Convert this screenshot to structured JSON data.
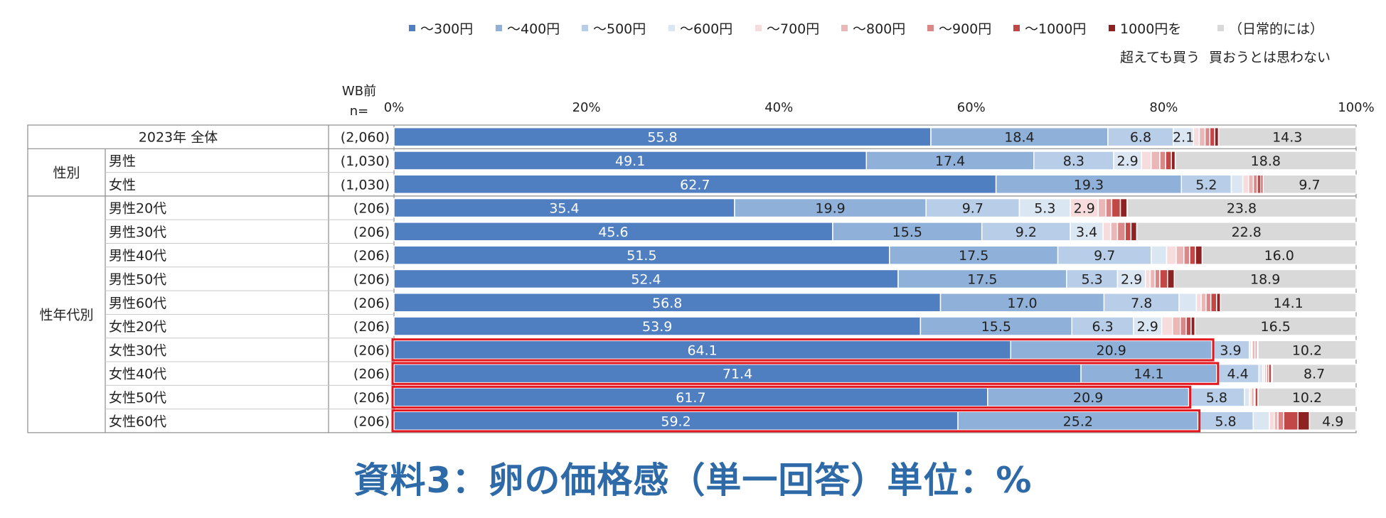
{
  "caption": "資料3：卵の価格感（単一回答）単位：%",
  "chart_data": {
    "type": "bar",
    "orientation": "horizontal",
    "stacked": "percent",
    "header": {
      "wb_label": "WB前",
      "n_label": "n="
    },
    "xlim": [
      0,
      100
    ],
    "x_ticks": [
      "0%",
      "20%",
      "40%",
      "60%",
      "80%",
      "100%"
    ],
    "legend_position": "top",
    "series": [
      {
        "name": "～300円",
        "color": "#4f7fc1",
        "label_color": "#ffffff"
      },
      {
        "name": "～400円",
        "color": "#8fb0d8",
        "label_color": "#222222"
      },
      {
        "name": "～500円",
        "color": "#b8cde8",
        "label_color": "#222222"
      },
      {
        "name": "～600円",
        "color": "#dbe6f3",
        "label_color": "#222222"
      },
      {
        "name": "～700円",
        "color": "#f6dcdc",
        "label_color": "#222222"
      },
      {
        "name": "～800円",
        "color": "#eab6b6",
        "label_color": "#222222"
      },
      {
        "name": "～900円",
        "color": "#d98787",
        "label_color": "#222222"
      },
      {
        "name": "～1000円",
        "color": "#c24747",
        "label_color": "#ffffff"
      },
      {
        "name": "1000円を超えても買う",
        "legend_lines": [
          "1000円を",
          "超えても買う"
        ],
        "color": "#8e2121",
        "label_color": "#ffffff"
      },
      {
        "name": "（日常的には）買おうとは思わない",
        "legend_lines": [
          "（日常的には）",
          "買おうとは思わない"
        ],
        "color": "#d9d9d9",
        "label_color": "#222222"
      }
    ],
    "groups": [
      {
        "label": "",
        "rows": 1
      },
      {
        "label": "性別",
        "rows": 2
      },
      {
        "label": "性年代別",
        "rows": 10
      }
    ],
    "rows": [
      {
        "label": "2023年  全体",
        "n": "(2,060)",
        "highlight": false,
        "values": [
          55.8,
          18.4,
          6.8,
          2.1,
          0.6,
          0.6,
          0.5,
          0.5,
          0.4,
          14.3
        ],
        "labels": [
          "55.8",
          "18.4",
          "6.8",
          "2.1",
          "",
          "",
          "",
          "",
          "",
          "14.3"
        ]
      },
      {
        "label": "男性",
        "n": "(1,030)",
        "highlight": false,
        "values": [
          49.1,
          17.4,
          8.3,
          2.9,
          1.0,
          0.9,
          0.6,
          0.6,
          0.4,
          18.8
        ],
        "labels": [
          "49.1",
          "17.4",
          "8.3",
          "2.9",
          "",
          "",
          "",
          "",
          "",
          "18.8"
        ]
      },
      {
        "label": "女性",
        "n": "(1,030)",
        "highlight": false,
        "values": [
          62.7,
          19.3,
          5.2,
          1.2,
          0.6,
          0.5,
          0.4,
          0.4,
          0.2,
          9.7
        ],
        "labels": [
          "62.7",
          "19.3",
          "5.2",
          "",
          "",
          "",
          "",
          "",
          "",
          "9.7"
        ]
      },
      {
        "label": "男性20代",
        "n": "(206)",
        "highlight": false,
        "values": [
          35.4,
          19.9,
          9.7,
          5.3,
          2.9,
          0.8,
          0.6,
          0.9,
          0.7,
          23.8
        ],
        "labels": [
          "35.4",
          "19.9",
          "9.7",
          "5.3",
          "2.9",
          "",
          "",
          "",
          "",
          "23.8"
        ]
      },
      {
        "label": "男性30代",
        "n": "(206)",
        "highlight": false,
        "values": [
          45.6,
          15.5,
          9.2,
          3.4,
          0.8,
          0.7,
          0.8,
          0.6,
          0.6,
          22.8
        ],
        "labels": [
          "45.6",
          "15.5",
          "9.2",
          "3.4",
          "",
          "",
          "",
          "",
          "",
          "22.8"
        ]
      },
      {
        "label": "男性40代",
        "n": "(206)",
        "highlight": false,
        "values": [
          51.5,
          17.5,
          9.7,
          1.6,
          1.0,
          0.8,
          0.6,
          0.6,
          0.7,
          16.0
        ],
        "labels": [
          "51.5",
          "17.5",
          "9.7",
          "",
          "",
          "",
          "",
          "",
          "",
          "16.0"
        ]
      },
      {
        "label": "男性50代",
        "n": "(206)",
        "highlight": false,
        "values": [
          52.4,
          17.5,
          5.3,
          2.9,
          0.5,
          0.5,
          0.5,
          0.8,
          0.7,
          18.9
        ],
        "labels": [
          "52.4",
          "17.5",
          "5.3",
          "2.9",
          "",
          "",
          "",
          "",
          "",
          "18.9"
        ]
      },
      {
        "label": "男性60代",
        "n": "(206)",
        "highlight": false,
        "values": [
          56.8,
          17.0,
          7.8,
          1.8,
          0.5,
          0.5,
          0.5,
          0.6,
          0.4,
          14.1
        ],
        "labels": [
          "56.8",
          "17.0",
          "7.8",
          "",
          "",
          "",
          "",
          "",
          "",
          "14.1"
        ]
      },
      {
        "label": "女性20代",
        "n": "(206)",
        "highlight": false,
        "values": [
          53.9,
          15.5,
          6.3,
          2.9,
          1.1,
          0.8,
          0.6,
          0.5,
          0.4,
          16.5
        ],
        "labels": [
          "53.9",
          "15.5",
          "6.3",
          "2.9",
          "",
          "",
          "",
          "",
          "",
          "16.5"
        ]
      },
      {
        "label": "女性30代",
        "n": "(206)",
        "highlight": true,
        "values": [
          64.1,
          20.9,
          3.9,
          0.2,
          0.1,
          0.3,
          0.2,
          0.1,
          0.0,
          10.2
        ],
        "labels": [
          "64.1",
          "20.9",
          "3.9",
          "",
          "",
          "",
          "",
          "",
          "",
          "10.2"
        ]
      },
      {
        "label": "女性40代",
        "n": "(206)",
        "highlight": true,
        "values": [
          71.4,
          14.1,
          4.4,
          0.4,
          0.2,
          0.2,
          0.2,
          0.3,
          0.1,
          8.7
        ],
        "labels": [
          "71.4",
          "14.1",
          "4.4",
          "",
          "",
          "",
          "",
          "",
          "",
          "8.7"
        ]
      },
      {
        "label": "女性50代",
        "n": "(206)",
        "highlight": true,
        "values": [
          61.7,
          20.9,
          5.8,
          0.5,
          0.2,
          0.3,
          0.1,
          0.3,
          0.0,
          10.2
        ],
        "labels": [
          "61.7",
          "20.9",
          "5.8",
          "",
          "",
          "",
          "",
          "",
          "",
          "10.2"
        ]
      },
      {
        "label": "女性60代",
        "n": "(206)",
        "highlight": true,
        "values": [
          59.2,
          25.2,
          5.8,
          1.7,
          0.5,
          0.4,
          0.6,
          1.5,
          1.2,
          4.9
        ],
        "labels": [
          "59.2",
          "25.2",
          "5.8",
          "",
          "",
          "",
          "",
          "",
          "",
          "4.9"
        ]
      }
    ]
  }
}
